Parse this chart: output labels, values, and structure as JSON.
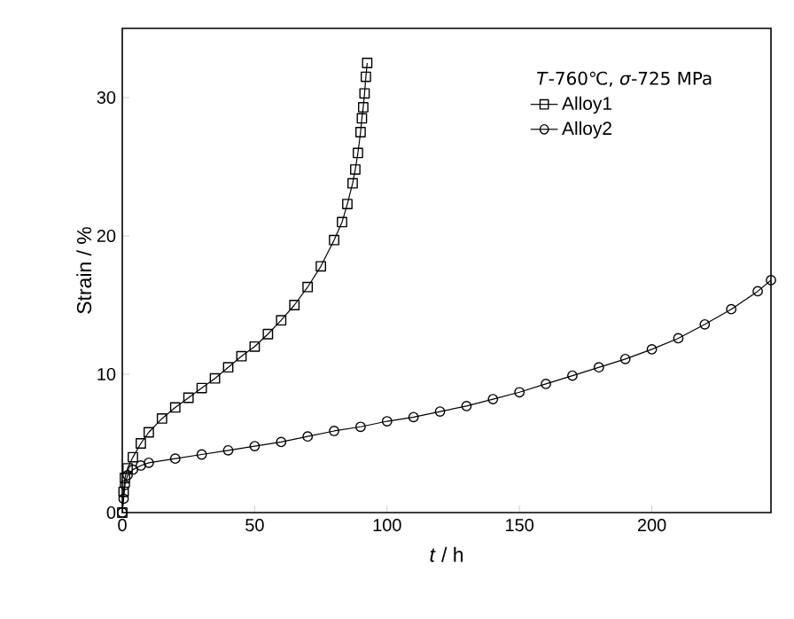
{
  "chart_data": {
    "type": "line",
    "xlabel": "*t* / h",
    "ylabel": "Strain / %",
    "legend_title": "*T*-760℃, *σ*-725 MPa",
    "xlim": [
      0,
      245
    ],
    "ylim": [
      0,
      35
    ],
    "xticks": [
      0,
      50,
      100,
      150,
      200
    ],
    "yticks": [
      0,
      10,
      20,
      30
    ],
    "legend": "top right",
    "grid": false,
    "line_style": "solid",
    "series": [
      {
        "name": "Alloy1",
        "color": "#000000",
        "marker": "square",
        "x": [
          0,
          0.5,
          1,
          2,
          4,
          7,
          10,
          15,
          20,
          25,
          30,
          35,
          40,
          45,
          50,
          55,
          60,
          65,
          70,
          75,
          80,
          83,
          85,
          87,
          88,
          89,
          90,
          90.5,
          91,
          91.5,
          92,
          92.5
        ],
        "values": [
          0,
          1.5,
          2.5,
          3.2,
          4,
          5,
          5.8,
          6.8,
          7.6,
          8.3,
          9,
          9.7,
          10.5,
          11.3,
          12,
          12.9,
          13.9,
          15,
          16.3,
          17.8,
          19.7,
          21,
          22.3,
          23.8,
          24.8,
          26,
          27.5,
          28.5,
          29.3,
          30.3,
          31.5,
          32.5
        ]
      },
      {
        "name": "Alloy2",
        "color": "#000000",
        "marker": "circle",
        "x": [
          0,
          0.5,
          1,
          2,
          4,
          7,
          10,
          20,
          30,
          40,
          50,
          60,
          70,
          80,
          90,
          100,
          110,
          120,
          130,
          140,
          150,
          160,
          170,
          180,
          190,
          200,
          210,
          220,
          230,
          240,
          245
        ],
        "values": [
          0,
          1,
          2,
          2.7,
          3.1,
          3.4,
          3.6,
          3.9,
          4.2,
          4.5,
          4.8,
          5.1,
          5.5,
          5.9,
          6.2,
          6.6,
          6.9,
          7.3,
          7.7,
          8.2,
          8.7,
          9.3,
          9.9,
          10.5,
          11.1,
          11.8,
          12.6,
          13.6,
          14.7,
          16.0,
          16.8
        ]
      }
    ]
  }
}
